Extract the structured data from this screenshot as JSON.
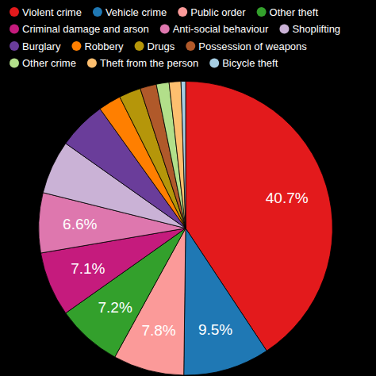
{
  "chart_data": {
    "type": "pie",
    "categories": [
      "Violent crime",
      "Vehicle crime",
      "Public order",
      "Other theft",
      "Criminal damage and arson",
      "Anti-social behaviour",
      "Shoplifting",
      "Burglary",
      "Robbery",
      "Drugs",
      "Possession of weapons",
      "Other crime",
      "Theft from the person",
      "Bicycle theft"
    ],
    "values": [
      40.7,
      9.5,
      7.8,
      7.2,
      7.1,
      6.6,
      5.9,
      5.3,
      2.5,
      2.4,
      1.8,
      1.4,
      1.3,
      0.5
    ],
    "value_labels": [
      "40.7%",
      "9.5%",
      "7.8%",
      "7.2%",
      "7.1%",
      "6.6%",
      null,
      null,
      null,
      null,
      null,
      null,
      null,
      null
    ],
    "colors": [
      "#e31a1c",
      "#1f78b4",
      "#fb9a99",
      "#33a02c",
      "#c51b7d",
      "#de77ae",
      "#cab2d6",
      "#6a3d9a",
      "#ff7f00",
      "#b5960a",
      "#b0592a",
      "#b2df8a",
      "#fdbf6f",
      "#a6cee3"
    ],
    "data_labels": true,
    "legend": "top"
  }
}
